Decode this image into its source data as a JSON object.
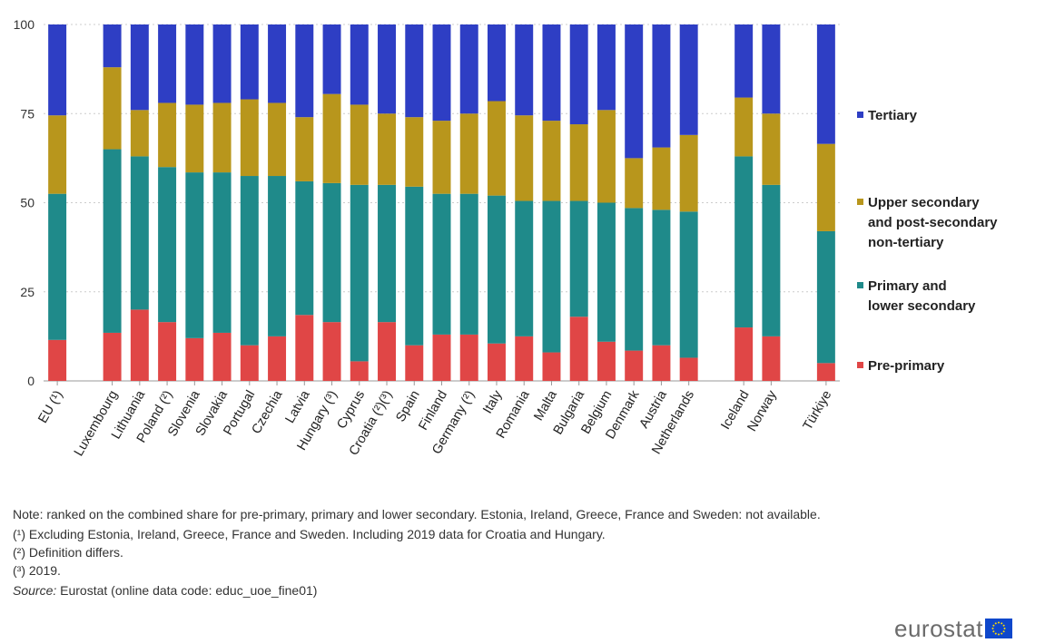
{
  "colors": {
    "tertiary": "#2e3ec4",
    "upper_secondary": "#b8961c",
    "primary_lower": "#1f8a8a",
    "pre_primary": "#e04646",
    "flag_blue": "#0e47cb",
    "flag_star": "#ffdd00"
  },
  "chart_data": {
    "type": "bar",
    "stacked": true,
    "ylim": [
      0,
      100
    ],
    "yticks": [
      "0",
      "25",
      "50",
      "75",
      "100"
    ],
    "grid": "horizontal",
    "legend_position": "right",
    "categories": [
      "EU (¹)",
      "Luxembourg",
      "Lithuania",
      "Poland (²)",
      "Slovenia",
      "Slovakia",
      "Portugal",
      "Czechia",
      "Latvia",
      "Hungary (³)",
      "Cyprus",
      "Croatia (²)(³)",
      "Spain",
      "Finland",
      "Germany (²)",
      "Italy",
      "Romania",
      "Malta",
      "Bulgaria",
      "Belgium",
      "Denmark",
      "Austria",
      "Netherlands",
      "Iceland",
      "Norway",
      "Türkiye"
    ],
    "gaps_after": [
      0,
      22,
      24
    ],
    "series": [
      {
        "name": "Pre-primary",
        "color_key": "pre_primary",
        "values": [
          11.5,
          13.5,
          20,
          16.5,
          12,
          13.5,
          10,
          12.5,
          18.5,
          16.5,
          5.5,
          16.5,
          10,
          13,
          13,
          10.5,
          12.5,
          8,
          18,
          11,
          8.5,
          10,
          6.5,
          15,
          12.5,
          5
        ]
      },
      {
        "name": "Primary and lower secondary",
        "color_key": "primary_lower",
        "values": [
          41,
          51.5,
          43,
          43.5,
          46.5,
          45,
          47.5,
          45,
          37.5,
          39,
          49.5,
          38.5,
          44.5,
          39.5,
          39.5,
          41.5,
          38,
          42.5,
          32.5,
          39,
          40,
          38,
          41,
          48,
          42.5,
          37
        ]
      },
      {
        "name": "Upper secondary and post-secondary non-tertiary",
        "color_key": "upper_secondary",
        "values": [
          22,
          23,
          13,
          18,
          19,
          19.5,
          21.5,
          20.5,
          18,
          25,
          22.5,
          20,
          19.5,
          20.5,
          22.5,
          26.5,
          24,
          22.5,
          21.5,
          26,
          14,
          17.5,
          21.5,
          16.5,
          20,
          24.5
        ]
      },
      {
        "name": "Tertiary",
        "color_key": "tertiary",
        "values": [
          25.5,
          12,
          24,
          22,
          22.5,
          22,
          21,
          22,
          26,
          19.5,
          22.5,
          25,
          26,
          27,
          25,
          21.5,
          25.5,
          27,
          28,
          24,
          37.5,
          34.5,
          31,
          20.5,
          25,
          33.5
        ]
      }
    ]
  },
  "legend": [
    {
      "lines": [
        "Tertiary"
      ],
      "color_key": "tertiary"
    },
    {
      "lines": [
        "Upper secondary",
        "and post-secondary",
        "non-tertiary"
      ],
      "color_key": "upper_secondary"
    },
    {
      "lines": [
        "Primary and",
        "lower secondary"
      ],
      "color_key": "primary_lower"
    },
    {
      "lines": [
        "Pre-primary"
      ],
      "color_key": "pre_primary"
    }
  ],
  "notes": {
    "note": "Note: ranked on the combined share for pre-primary, primary and lower secondary. Estonia, Ireland, Greece, France and Sweden: not available.",
    "footnote1": "(¹) Excluding Estonia, Ireland, Greece, France and Sweden. Including 2019 data for Croatia and Hungary.",
    "footnote2": "(²) Definition differs.",
    "footnote3": "(³) 2019.",
    "source_label": "Source:",
    "source_text": " Eurostat (online data code: educ_uoe_fine01)"
  },
  "brand": {
    "name": "eurostat",
    "icon": "eu-flag-icon"
  }
}
